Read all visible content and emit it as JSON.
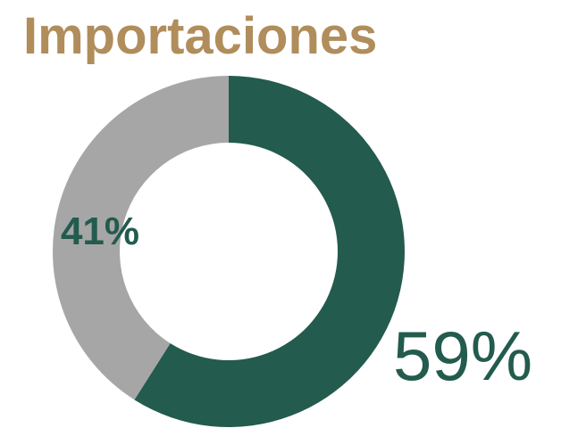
{
  "chart_data": {
    "type": "pie",
    "title": "Importaciones",
    "values": [
      59,
      41
    ],
    "value_labels": [
      "59%",
      "41%"
    ],
    "colors": [
      "#235b4e",
      "#a6a6a6"
    ],
    "label_color": "#235b4e",
    "title_color": "#b08d5b"
  }
}
